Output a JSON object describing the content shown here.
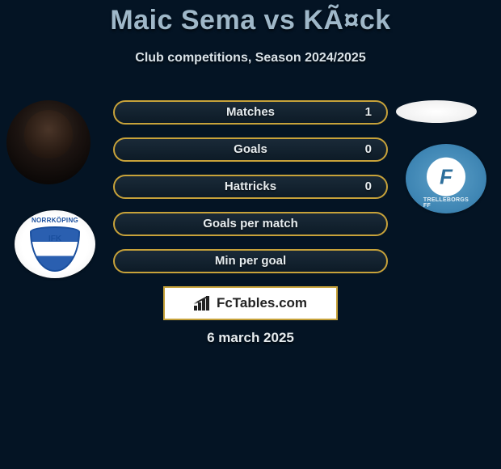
{
  "title": "Maic Sema vs KÃ¤ck",
  "subtitle": "Club competitions, Season 2024/2025",
  "date": "6 march 2025",
  "brand": {
    "name_strong": "Fc",
    "name_rest": "Tables.com"
  },
  "colors": {
    "background": "#041424",
    "pill_border": "#c7a23a",
    "title_color": "#9fb8c9",
    "text_color": "#e6ecef"
  },
  "rows": [
    {
      "label": "Matches",
      "right": "1"
    },
    {
      "label": "Goals",
      "right": "0"
    },
    {
      "label": "Hattricks",
      "right": "0"
    },
    {
      "label": "Goals per match",
      "right": ""
    },
    {
      "label": "Min per goal",
      "right": ""
    }
  ],
  "left": {
    "player": "Maic Sema",
    "club": "IFK Norrköping"
  },
  "right": {
    "player": "Käck",
    "club": "Trelleborgs FF"
  }
}
